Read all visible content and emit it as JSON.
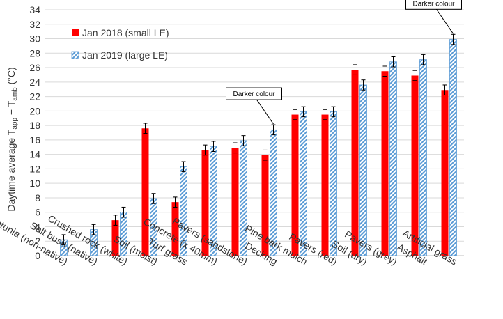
{
  "chart_data": {
    "type": "bar",
    "title": "",
    "xlabel": "",
    "ylabel": {
      "main": "Daytime average T",
      "sub1": "app",
      "mid": " − T",
      "sub2": "amb",
      "unit": " (°C)"
    },
    "ylim": [
      0,
      34
    ],
    "ytick_step": 2,
    "grid": true,
    "legend_position": "top-left",
    "categories": [
      "Petunia (non-native)",
      "Salt bush (native)",
      "Crushed rock (white)",
      "Soil (moist)",
      "Turf grass",
      "Concrete (x 40mm)",
      "Pavers (sandstone)",
      "Decking",
      "Pine bark mulch",
      "Pavers (red)",
      "Soil (dry)",
      "Pavers (grey)",
      "Asphalt",
      "Artificial grass"
    ],
    "series": [
      {
        "name": "Jan 2018 (small LE)",
        "color": "#ff0000",
        "pattern": "solid",
        "values": [
          null,
          null,
          4.9,
          17.6,
          7.4,
          14.6,
          14.9,
          13.9,
          19.5,
          19.5,
          25.7,
          25.5,
          24.9,
          22.9
        ],
        "errors": [
          null,
          null,
          0.7,
          0.7,
          0.7,
          0.7,
          0.7,
          0.7,
          0.7,
          0.7,
          0.7,
          0.7,
          0.7,
          0.7
        ]
      },
      {
        "name": "Jan 2019 (large LE)",
        "color": "#5b9bd5",
        "pattern": "hatched",
        "values": [
          2.2,
          3.6,
          6.0,
          7.9,
          12.3,
          15.1,
          15.9,
          17.4,
          19.9,
          19.9,
          23.6,
          26.8,
          27.1,
          29.9
        ],
        "errors": [
          0.7,
          0.7,
          0.7,
          0.7,
          0.7,
          0.7,
          0.7,
          0.7,
          0.7,
          0.7,
          0.7,
          0.7,
          0.7,
          0.7
        ]
      }
    ],
    "annotations": [
      {
        "text": "Darker colour",
        "category": "Decking",
        "series": 1
      },
      {
        "text": "Darker colour",
        "category": "Artificial grass",
        "series": 1
      }
    ]
  }
}
